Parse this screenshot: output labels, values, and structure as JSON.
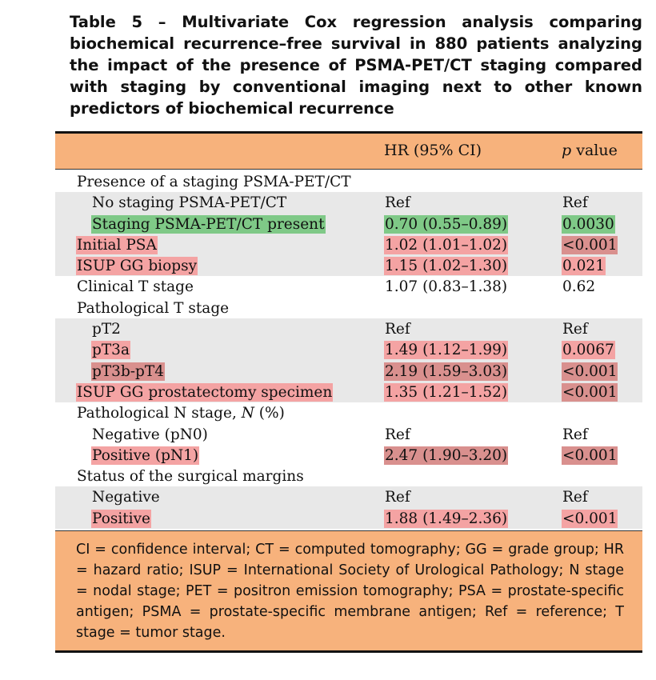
{
  "caption": "Table 5 – Multivariate Cox regression analysis comparing biochemical recurrence–free survival in 880 patients analyzing the impact of the presence of PSMA-PET/CT staging compared with staging by conventional imaging next to other known predictors of biochemical recurrence",
  "header": {
    "col_hr": "HR (95% CI)",
    "col_p_italic": "p",
    "col_p_rest": " value"
  },
  "rows": [
    {
      "label": "Presence of a staging PSMA-PET/CT",
      "hr": "",
      "p": ""
    },
    {
      "label": "No staging PSMA-PET/CT",
      "hr": "Ref",
      "p": "Ref"
    },
    {
      "label": "Staging PSMA-PET/CT present",
      "hr": "0.70 (0.55–0.89)",
      "p": "0.0030"
    },
    {
      "label": "Initial PSA",
      "hr": "1.02 (1.01–1.02)",
      "p": "<0.001"
    },
    {
      "label": "ISUP GG biopsy",
      "hr": "1.15 (1.02–1.30)",
      "p": "0.021"
    },
    {
      "label": "Clinical T stage",
      "hr": "1.07 (0.83–1.38)",
      "p": "0.62"
    },
    {
      "label": "Pathological T stage",
      "hr": "",
      "p": ""
    },
    {
      "label": "pT2",
      "hr": "Ref",
      "p": "Ref"
    },
    {
      "label": "pT3a",
      "hr": "1.49 (1.12–1.99)",
      "p": "0.0067"
    },
    {
      "label": "pT3b-pT4",
      "hr": "2.19 (1.59–3.03)",
      "p": "<0.001"
    },
    {
      "label": "ISUP GG prostatectomy specimen",
      "hr": "1.35 (1.21–1.52)",
      "p": "<0.001"
    },
    {
      "label_pre": "Pathological N stage, ",
      "label_italic": "N",
      "label_post": " (%)",
      "hr": "",
      "p": ""
    },
    {
      "label": "Negative (pN0)",
      "hr": "Ref",
      "p": "Ref"
    },
    {
      "label": "Positive (pN1)",
      "hr": "2.47 (1.90–3.20)",
      "p": "<0.001"
    },
    {
      "label": "Status of the surgical margins",
      "hr": "",
      "p": ""
    },
    {
      "label": "Negative",
      "hr": "Ref",
      "p": "Ref"
    },
    {
      "label": "Positive",
      "hr": "1.88 (1.49–2.36)",
      "p": "<0.001"
    }
  ],
  "footnote": "CI = confidence interval; CT = computed tomography; GG = grade group; HR = hazard ratio; ISUP = International Society of Urological Pathology; N stage = nodal stage; PET = positron emission tomography; PSA = prostate-specific antigen; PSMA = prostate-specific membrane antigen; Ref = reference; T stage = tumor stage.",
  "colors": {
    "header_bg": "#f7b27c",
    "row_shade": "#e8e8e8",
    "highlight_green": "#7fc987",
    "highlight_pink": "#f4a3a3",
    "highlight_rose": "#d9908e"
  }
}
